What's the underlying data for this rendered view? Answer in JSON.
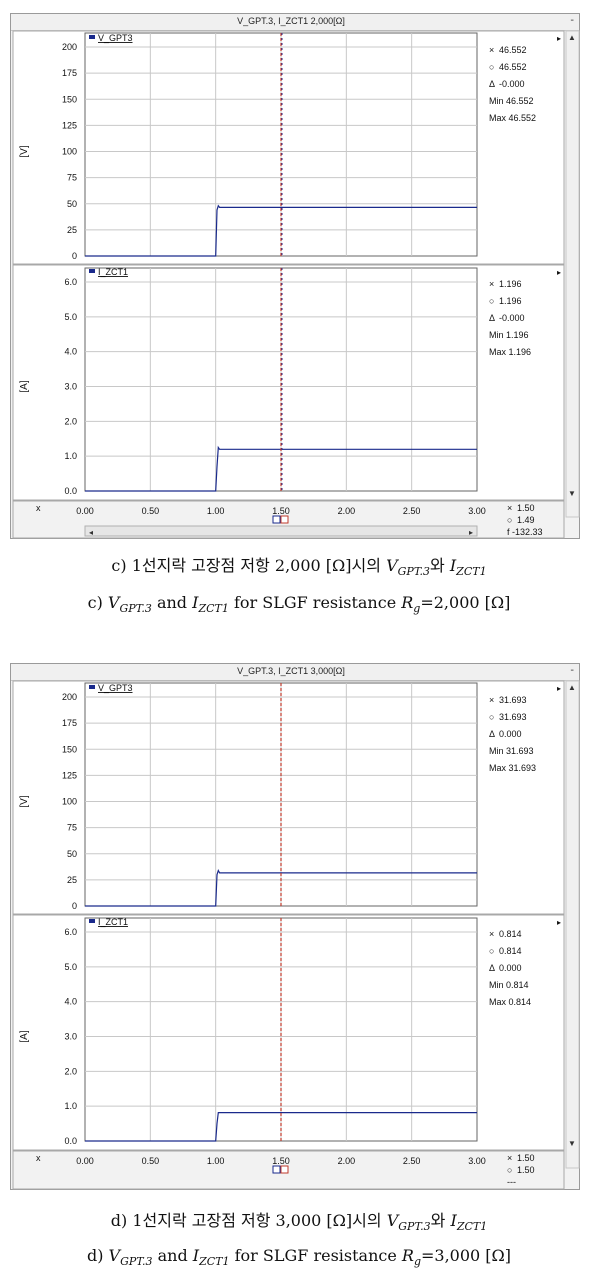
{
  "figures": [
    {
      "title": "V_GPT.3, I_ZCT1 2,000[Ω]",
      "window_controls": {
        "close": "-",
        "scroll_up": "▲",
        "scroll_down": "▼"
      },
      "cursor_icon_x": "×",
      "cursor_icon_o": "○",
      "x_axis_symbol": "x",
      "x_ticks": [
        "0.00",
        "0.50",
        "1.00",
        "1.50",
        "2.00",
        "2.50",
        "3.00"
      ],
      "x_readout": {
        "x": "1.50",
        "o": "1.49",
        "f": "f  -132.33"
      },
      "panels": [
        {
          "legend": "V_GPT3",
          "ylabel": "[V]",
          "yticks": [
            "0",
            "25",
            "50",
            "75",
            "100",
            "125",
            "150",
            "175",
            "200"
          ],
          "stats": {
            "x": "46.552",
            "o": "46.552",
            "d": "-0.000",
            "min": "Min 46.552",
            "max": "Max 46.552"
          }
        },
        {
          "legend": "I_ZCT1",
          "ylabel": "[A]",
          "yticks": [
            "0.0",
            "1.0",
            "2.0",
            "3.0",
            "4.0",
            "5.0",
            "6.0"
          ],
          "stats": {
            "x": "1.196",
            "o": "1.196",
            "d": "-0.000",
            "min": "Min 1.196",
            "max": "Max 1.196"
          }
        }
      ],
      "caption_kr": {
        "prefix": "c) 1선지락 고장점 저항 2,000 [Ω]시의 ",
        "v_main": "V",
        "v_sub": "GPT.3",
        "mid": "와 ",
        "i_main": "I",
        "i_sub": "ZCT1"
      },
      "caption_en": {
        "prefix": "c) ",
        "v_main": "V",
        "v_sub": "GPT.3",
        "mid": " and ",
        "i_main": "I",
        "i_sub": "ZCT1",
        "suffix1": " for SLGF resistance ",
        "r_main": "R",
        "r_sub": "g",
        "suffix2": "=2,000 [Ω]"
      }
    },
    {
      "title": "V_GPT.3, I_ZCT1 3,000[Ω]",
      "window_controls": {
        "close": "-",
        "scroll_up": "▲",
        "scroll_down": "▼"
      },
      "cursor_icon_x": "×",
      "cursor_icon_o": "○",
      "x_axis_symbol": "x",
      "x_ticks": [
        "0.00",
        "0.50",
        "1.00",
        "1.50",
        "2.00",
        "2.50",
        "3.00"
      ],
      "x_readout": {
        "x": "1.50",
        "o": "1.50",
        "f": "---"
      },
      "panels": [
        {
          "legend": "V_GPT3",
          "ylabel": "[V]",
          "yticks": [
            "0",
            "25",
            "50",
            "75",
            "100",
            "125",
            "150",
            "175",
            "200"
          ],
          "stats": {
            "x": "31.693",
            "o": "31.693",
            "d": "0.000",
            "min": "Min 31.693",
            "max": "Max 31.693"
          }
        },
        {
          "legend": "I_ZCT1",
          "ylabel": "[A]",
          "yticks": [
            "0.0",
            "1.0",
            "2.0",
            "3.0",
            "4.0",
            "5.0",
            "6.0"
          ],
          "stats": {
            "x": "0.814",
            "o": "0.814",
            "d": "0.000",
            "min": "Min 0.814",
            "max": "Max 0.814"
          }
        }
      ],
      "caption_kr": {
        "prefix": "d) 1선지락 고장점 저항 3,000 [Ω]시의 ",
        "v_main": "V",
        "v_sub": "GPT.3",
        "mid": "와 ",
        "i_main": "I",
        "i_sub": "ZCT1"
      },
      "caption_en": {
        "prefix": "d) ",
        "v_main": "V",
        "v_sub": "GPT.3",
        "mid": " and ",
        "i_main": "I",
        "i_sub": "ZCT1",
        "suffix1": " for SLGF resistance ",
        "r_main": "R",
        "r_sub": "g",
        "suffix2": "=3,000 [Ω]"
      }
    }
  ],
  "chart_data": [
    {
      "type": "line",
      "title": "V_GPT.3, I_ZCT1 2,000[Ω]",
      "ylabel": "[V]",
      "xlim": [
        0,
        3
      ],
      "ylim": [
        0,
        200
      ],
      "cursor_x": 1.5,
      "series": [
        {
          "name": "V_GPT3",
          "x": [
            0,
            1.0,
            1.01,
            1.02,
            1.03,
            1.04,
            3.0
          ],
          "y": [
            0,
            0,
            44,
            48,
            46.552,
            46.552,
            46.552
          ]
        }
      ]
    },
    {
      "type": "line",
      "title": "V_GPT.3, I_ZCT1 2,000[Ω]",
      "ylabel": "[A]",
      "xlim": [
        0,
        3
      ],
      "ylim": [
        0,
        6
      ],
      "cursor_x": 1.5,
      "series": [
        {
          "name": "I_ZCT1",
          "x": [
            0,
            1.0,
            1.01,
            1.02,
            1.03,
            3.0
          ],
          "y": [
            0,
            0,
            0.7,
            1.25,
            1.196,
            1.196
          ]
        }
      ]
    },
    {
      "type": "line",
      "title": "V_GPT.3, I_ZCT1 3,000[Ω]",
      "ylabel": "[V]",
      "xlim": [
        0,
        3
      ],
      "ylim": [
        0,
        200
      ],
      "cursor_x": 1.5,
      "series": [
        {
          "name": "V_GPT3",
          "x": [
            0,
            1.0,
            1.01,
            1.02,
            1.03,
            1.04,
            3.0
          ],
          "y": [
            0,
            0,
            30,
            34,
            31.693,
            31.693,
            31.693
          ]
        }
      ]
    },
    {
      "type": "line",
      "title": "V_GPT.3, I_ZCT1 3,000[Ω]",
      "ylabel": "[A]",
      "xlim": [
        0,
        3
      ],
      "ylim": [
        0,
        6
      ],
      "cursor_x": 1.5,
      "series": [
        {
          "name": "I_ZCT1",
          "x": [
            0,
            1.0,
            1.01,
            1.02,
            3.0
          ],
          "y": [
            0,
            0,
            0.5,
            0.814,
            0.814
          ]
        }
      ]
    }
  ]
}
